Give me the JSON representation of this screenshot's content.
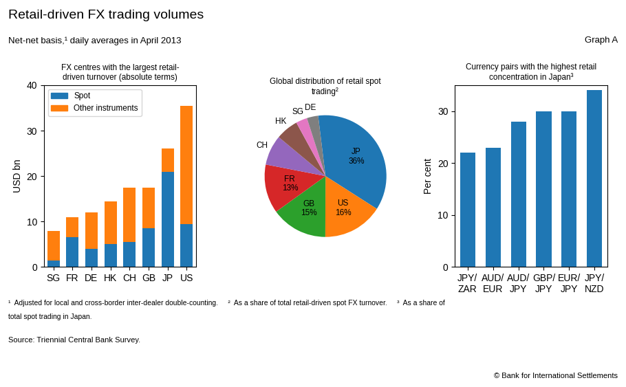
{
  "title": "Retail-driven FX trading volumes",
  "subtitle": "Net-net basis,¹ daily averages in April 2013",
  "annotations": [
    "Graph A",
    "¹  Adjusted for local and cross-border inter-dealer double-counting.     ²  As a share of total retail-driven spot FX turnover.     ³  As a share of",
    "total spot trading in Japan.",
    "Source: Triennial Central Bank Survey.",
    "© Bank for International Settlements"
  ],
  "chart_data": [
    {
      "type": "bar",
      "title": "FX centres with the largest retail-\ndriven turnover (absolute terms)",
      "ylabel": "USD bn",
      "categories": [
        "SG",
        "FR",
        "DE",
        "HK",
        "CH",
        "GB",
        "JP",
        "US"
      ],
      "series": [
        {
          "name": "Spot",
          "color": "#1f77b4",
          "values": [
            1.5,
            6.5,
            4.0,
            5.0,
            5.5,
            8.5,
            21.0,
            9.5
          ]
        },
        {
          "name": "Other instruments",
          "color": "#ff7f0e",
          "values": [
            6.5,
            4.5,
            8.0,
            9.5,
            12.0,
            9.0,
            5.0,
            26.0
          ]
        }
      ],
      "stacked": true,
      "legend": "upper left",
      "grid": false,
      "ylim": [
        0,
        40
      ],
      "yticks": [
        0,
        10,
        20,
        30,
        40
      ]
    },
    {
      "type": "pie",
      "title": "Global distribution of retail spot\ntrading²",
      "categories": [
        "JP",
        "US",
        "GB",
        "FR",
        "CH",
        "HK",
        "SG",
        "DE"
      ],
      "values": [
        36,
        16,
        15,
        13,
        8,
        6,
        3,
        3
      ],
      "value_labels": [
        "36%",
        "16%",
        "15%",
        "13%",
        null,
        null,
        null,
        null
      ],
      "data_labels": true,
      "colors": [
        "#1f77b4",
        "#ff7f0e",
        "#2ca02c",
        "#d62728",
        "#9467bd",
        "#8c564b",
        "#e377c2",
        "#7f7f7f"
      ]
    },
    {
      "type": "bar",
      "title": "Currency pairs with the highest retail\nconcentration in Japan³",
      "ylabel": "Per cent",
      "categories": [
        "JPY/\nZAR",
        "AUD/\nEUR",
        "AUD/\nJPY",
        "GBP/\nJPY",
        "EUR/\nJPY",
        "JPY/\nNZD"
      ],
      "values": [
        22,
        23,
        28,
        30,
        30,
        34
      ],
      "color": "#1f77b4",
      "grid": false,
      "ylim": [
        0,
        35
      ],
      "yticks": [
        0,
        10,
        20,
        30
      ]
    }
  ]
}
